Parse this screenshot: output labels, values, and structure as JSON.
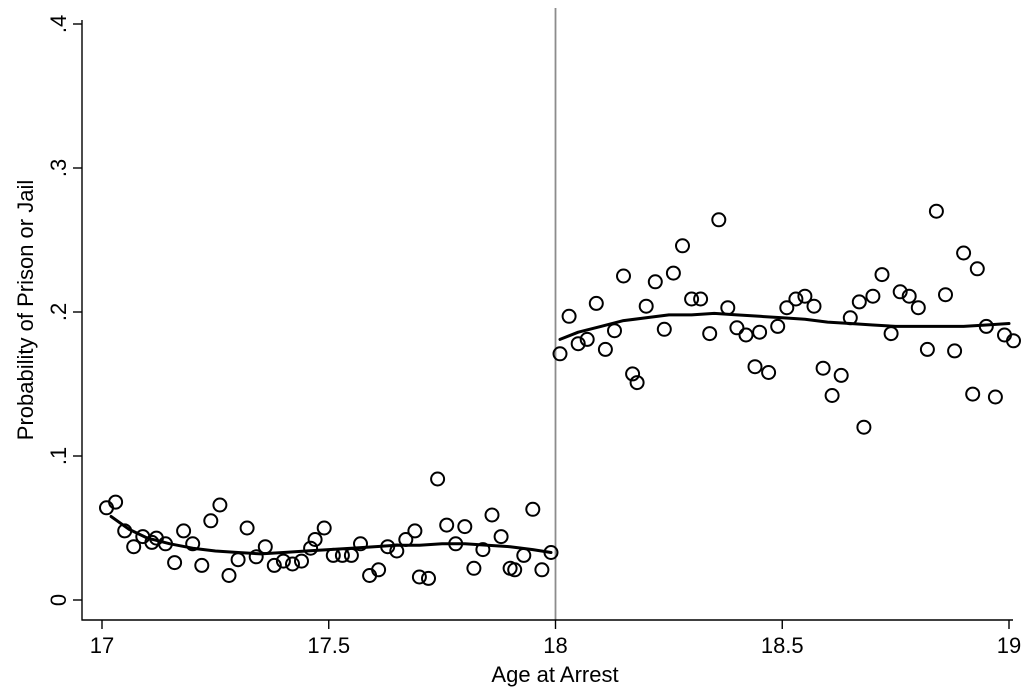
{
  "chart_data": {
    "type": "scatter",
    "xlabel": "Age at Arrest",
    "ylabel": "Probability of Prison or Jail",
    "xlim": [
      17,
      19
    ],
    "ylim": [
      0,
      0.4
    ],
    "x_ticks": [
      17,
      17.5,
      18,
      18.5,
      19
    ],
    "x_tick_labels": [
      "17",
      "17.5",
      "18",
      "18.5",
      "19"
    ],
    "y_ticks": [
      0,
      0.1,
      0.2,
      0.3,
      0.4
    ],
    "y_tick_labels": [
      "0",
      ".1",
      ".2",
      ".3",
      ".4"
    ],
    "cutoff_x": 18,
    "grid": false,
    "colors": {
      "points": "#000000",
      "fit": "#000000",
      "cutoff": "#8c8c8c"
    },
    "points": [
      [
        17.01,
        0.064
      ],
      [
        17.03,
        0.068
      ],
      [
        17.05,
        0.048
      ],
      [
        17.07,
        0.037
      ],
      [
        17.09,
        0.044
      ],
      [
        17.11,
        0.04
      ],
      [
        17.12,
        0.043
      ],
      [
        17.14,
        0.039
      ],
      [
        17.16,
        0.026
      ],
      [
        17.18,
        0.048
      ],
      [
        17.2,
        0.039
      ],
      [
        17.22,
        0.024
      ],
      [
        17.24,
        0.055
      ],
      [
        17.26,
        0.066
      ],
      [
        17.28,
        0.017
      ],
      [
        17.3,
        0.028
      ],
      [
        17.32,
        0.05
      ],
      [
        17.34,
        0.03
      ],
      [
        17.36,
        0.037
      ],
      [
        17.38,
        0.024
      ],
      [
        17.4,
        0.027
      ],
      [
        17.42,
        0.025
      ],
      [
        17.44,
        0.027
      ],
      [
        17.46,
        0.036
      ],
      [
        17.47,
        0.042
      ],
      [
        17.49,
        0.05
      ],
      [
        17.51,
        0.031
      ],
      [
        17.53,
        0.031
      ],
      [
        17.55,
        0.031
      ],
      [
        17.57,
        0.039
      ],
      [
        17.59,
        0.017
      ],
      [
        17.61,
        0.021
      ],
      [
        17.63,
        0.037
      ],
      [
        17.65,
        0.034
      ],
      [
        17.67,
        0.042
      ],
      [
        17.69,
        0.048
      ],
      [
        17.7,
        0.016
      ],
      [
        17.72,
        0.015
      ],
      [
        17.74,
        0.084
      ],
      [
        17.76,
        0.052
      ],
      [
        17.78,
        0.039
      ],
      [
        17.8,
        0.051
      ],
      [
        17.82,
        0.022
      ],
      [
        17.84,
        0.035
      ],
      [
        17.86,
        0.059
      ],
      [
        17.88,
        0.044
      ],
      [
        17.9,
        0.022
      ],
      [
        17.91,
        0.021
      ],
      [
        17.93,
        0.031
      ],
      [
        17.95,
        0.063
      ],
      [
        17.97,
        0.021
      ],
      [
        17.99,
        0.033
      ],
      [
        18.01,
        0.171
      ],
      [
        18.03,
        0.197
      ],
      [
        18.05,
        0.178
      ],
      [
        18.07,
        0.181
      ],
      [
        18.09,
        0.206
      ],
      [
        18.11,
        0.174
      ],
      [
        18.13,
        0.187
      ],
      [
        18.15,
        0.225
      ],
      [
        18.17,
        0.157
      ],
      [
        18.18,
        0.151
      ],
      [
        18.2,
        0.204
      ],
      [
        18.22,
        0.221
      ],
      [
        18.24,
        0.188
      ],
      [
        18.26,
        0.227
      ],
      [
        18.28,
        0.246
      ],
      [
        18.3,
        0.209
      ],
      [
        18.32,
        0.209
      ],
      [
        18.34,
        0.185
      ],
      [
        18.36,
        0.264
      ],
      [
        18.38,
        0.203
      ],
      [
        18.4,
        0.189
      ],
      [
        18.42,
        0.184
      ],
      [
        18.44,
        0.162
      ],
      [
        18.45,
        0.186
      ],
      [
        18.47,
        0.158
      ],
      [
        18.49,
        0.19
      ],
      [
        18.51,
        0.203
      ],
      [
        18.53,
        0.209
      ],
      [
        18.55,
        0.211
      ],
      [
        18.57,
        0.204
      ],
      [
        18.59,
        0.161
      ],
      [
        18.61,
        0.142
      ],
      [
        18.63,
        0.156
      ],
      [
        18.65,
        0.196
      ],
      [
        18.67,
        0.207
      ],
      [
        18.68,
        0.12
      ],
      [
        18.7,
        0.211
      ],
      [
        18.72,
        0.226
      ],
      [
        18.74,
        0.185
      ],
      [
        18.76,
        0.214
      ],
      [
        18.78,
        0.211
      ],
      [
        18.8,
        0.203
      ],
      [
        18.82,
        0.174
      ],
      [
        18.84,
        0.27
      ],
      [
        18.86,
        0.212
      ],
      [
        18.88,
        0.173
      ],
      [
        18.9,
        0.241
      ],
      [
        18.92,
        0.143
      ],
      [
        18.93,
        0.23
      ],
      [
        18.95,
        0.19
      ],
      [
        18.97,
        0.141
      ],
      [
        18.99,
        0.184
      ],
      [
        19.01,
        0.18
      ]
    ],
    "fit_left": [
      [
        17.02,
        0.058
      ],
      [
        17.06,
        0.049
      ],
      [
        17.1,
        0.043
      ],
      [
        17.15,
        0.039
      ],
      [
        17.2,
        0.036
      ],
      [
        17.25,
        0.034
      ],
      [
        17.3,
        0.033
      ],
      [
        17.35,
        0.032
      ],
      [
        17.4,
        0.033
      ],
      [
        17.45,
        0.034
      ],
      [
        17.5,
        0.035
      ],
      [
        17.55,
        0.036
      ],
      [
        17.6,
        0.037
      ],
      [
        17.65,
        0.038
      ],
      [
        17.7,
        0.038
      ],
      [
        17.75,
        0.039
      ],
      [
        17.8,
        0.039
      ],
      [
        17.85,
        0.038
      ],
      [
        17.9,
        0.037
      ],
      [
        17.95,
        0.035
      ],
      [
        17.99,
        0.033
      ]
    ],
    "fit_right": [
      [
        18.01,
        0.181
      ],
      [
        18.05,
        0.186
      ],
      [
        18.1,
        0.19
      ],
      [
        18.15,
        0.194
      ],
      [
        18.2,
        0.196
      ],
      [
        18.25,
        0.198
      ],
      [
        18.3,
        0.198
      ],
      [
        18.35,
        0.199
      ],
      [
        18.4,
        0.198
      ],
      [
        18.45,
        0.197
      ],
      [
        18.5,
        0.196
      ],
      [
        18.55,
        0.195
      ],
      [
        18.6,
        0.193
      ],
      [
        18.65,
        0.192
      ],
      [
        18.7,
        0.191
      ],
      [
        18.75,
        0.19
      ],
      [
        18.8,
        0.19
      ],
      [
        18.85,
        0.19
      ],
      [
        18.9,
        0.19
      ],
      [
        18.95,
        0.191
      ],
      [
        19.0,
        0.192
      ]
    ]
  }
}
